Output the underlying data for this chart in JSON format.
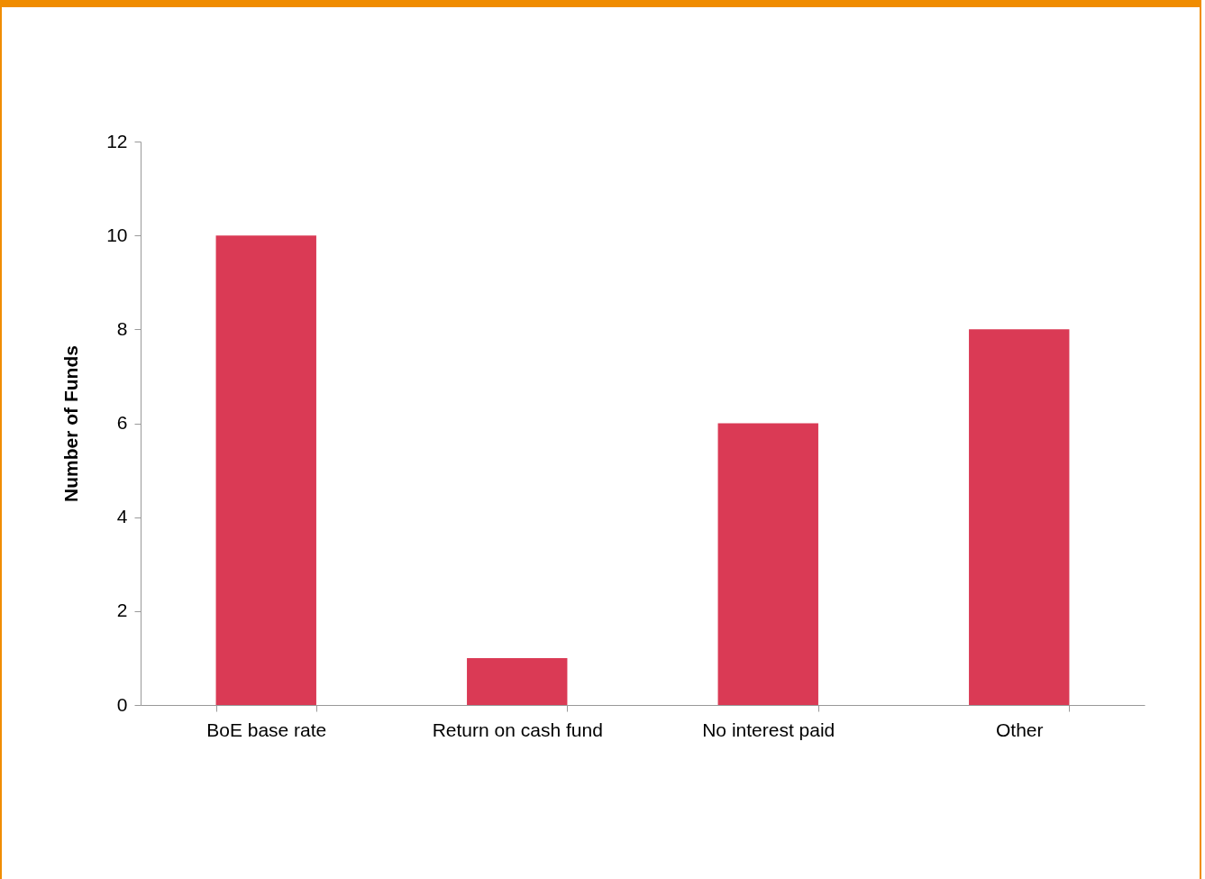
{
  "chart_data": {
    "type": "bar",
    "ylabel": "Number of Funds",
    "categories": [
      "BoE base rate",
      "Return on cash fund",
      "No interest paid",
      "Other"
    ],
    "values": [
      10,
      1,
      6,
      8
    ],
    "color": "#da3a55",
    "ylim": [
      0,
      12
    ],
    "yticks": [
      0,
      2,
      4,
      6,
      8,
      10,
      12
    ],
    "grid": false
  }
}
